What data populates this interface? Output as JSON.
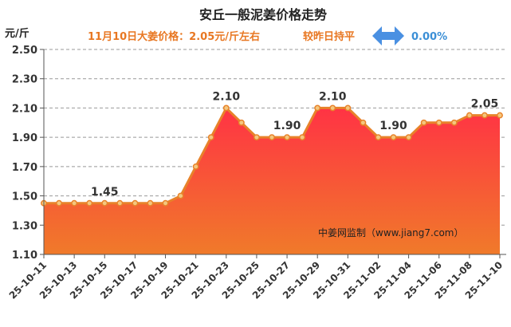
{
  "chart_data": {
    "type": "area",
    "title": "安丘一般泥姜价格走势",
    "subtitle": {
      "price_text": "11月10日大姜价格：2.05元/斤左右",
      "compare_text": "较昨日持平",
      "change_text": "0.00%"
    },
    "ylabel": "元/斤",
    "ylim": [
      1.1,
      2.5
    ],
    "yticks": [
      "1.10",
      "1.30",
      "1.50",
      "1.70",
      "1.90",
      "2.10",
      "2.30",
      "2.50"
    ],
    "x": [
      "25-10-11",
      "25-10-12",
      "25-10-13",
      "25-10-14",
      "25-10-15",
      "25-10-16",
      "25-10-17",
      "25-10-18",
      "25-10-19",
      "25-10-20",
      "25-10-21",
      "25-10-22",
      "25-10-23",
      "25-10-24",
      "25-10-25",
      "25-10-26",
      "25-10-27",
      "25-10-28",
      "25-10-29",
      "25-10-30",
      "25-10-31",
      "25-11-01",
      "25-11-02",
      "25-11-03",
      "25-11-04",
      "25-11-05",
      "25-11-06",
      "25-11-07",
      "25-11-08",
      "25-11-09",
      "25-11-10"
    ],
    "xtick_labels": [
      "25-10-11",
      "25-10-13",
      "25-10-15",
      "25-10-17",
      "25-10-19",
      "25-10-21",
      "25-10-23",
      "25-10-25",
      "25-10-27",
      "25-10-29",
      "25-10-31",
      "25-11-02",
      "25-11-04",
      "25-11-06",
      "25-11-08",
      "25-11-10"
    ],
    "values": [
      1.45,
      1.45,
      1.45,
      1.45,
      1.45,
      1.45,
      1.45,
      1.45,
      1.45,
      1.5,
      1.7,
      1.9,
      2.1,
      2.0,
      1.9,
      1.9,
      1.9,
      1.9,
      2.1,
      2.1,
      2.1,
      2.0,
      1.9,
      1.9,
      1.9,
      2.0,
      2.0,
      2.0,
      2.05,
      2.05,
      2.05
    ],
    "data_labels": [
      {
        "index": 4,
        "text": "1.45"
      },
      {
        "index": 12,
        "text": "2.10"
      },
      {
        "index": 16,
        "text": "1.90"
      },
      {
        "index": 19,
        "text": "2.10"
      },
      {
        "index": 23,
        "text": "1.90"
      },
      {
        "index": 29,
        "text": "2.05"
      }
    ],
    "watermark": "中姜网监制（www.jiang7.com）",
    "grid": "horizontal-dashed",
    "colors": {
      "title_orange": "#e87722",
      "compare_orange": "#e87722",
      "change_blue": "#3b8fd6",
      "arrow_blue": "#4a90e2",
      "line": "#e8822a",
      "marker_fill": "#f4c77e",
      "area_top": "#ff3344",
      "area_bottom": "#f07a2a"
    }
  }
}
